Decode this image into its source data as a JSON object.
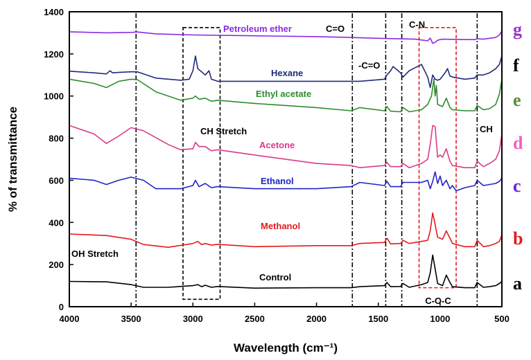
{
  "chart_data": {
    "type": "line",
    "xlabel": "Wavelength (cm⁻¹)",
    "ylabel": "% of transmittance",
    "xlim": [
      4000,
      500
    ],
    "ylim": [
      0,
      1400
    ],
    "x_ticks": [
      "4000",
      "3500",
      "3000",
      "2500",
      "2000",
      "1500",
      "1000",
      "500"
    ],
    "y_ticks": [
      "0",
      "200",
      "400",
      "600",
      "800",
      "1000",
      "1200",
      "1400"
    ],
    "grid": false,
    "series": [
      {
        "name": "Control",
        "letter": "a",
        "color": "#000000",
        "letter_color": "#000000",
        "x": [
          4000,
          3700,
          3500,
          3400,
          3200,
          3000,
          2960,
          2930,
          2900,
          2850,
          2800,
          2500,
          2000,
          1720,
          1650,
          1450,
          1430,
          1400,
          1320,
          1300,
          1250,
          1150,
          1100,
          1080,
          1060,
          1040,
          1020,
          980,
          950,
          920,
          900,
          800,
          720,
          700,
          650,
          600,
          550,
          520,
          500
        ],
        "y": [
          120,
          118,
          105,
          92,
          92,
          100,
          105,
          95,
          102,
          92,
          96,
          88,
          90,
          90,
          95,
          100,
          115,
          95,
          96,
          110,
          92,
          105,
          115,
          160,
          245,
          180,
          110,
          100,
          150,
          115,
          95,
          90,
          90,
          115,
          92,
          95,
          100,
          110,
          120
        ]
      },
      {
        "name": "Methanol",
        "letter": "b",
        "color": "#e41a1c",
        "letter_color": "#e41a1c",
        "x": [
          4000,
          3700,
          3500,
          3400,
          3200,
          3000,
          2960,
          2930,
          2900,
          2850,
          2800,
          2500,
          2000,
          1720,
          1650,
          1450,
          1430,
          1400,
          1320,
          1300,
          1250,
          1150,
          1100,
          1080,
          1060,
          1040,
          1020,
          980,
          950,
          920,
          900,
          800,
          720,
          700,
          650,
          600,
          550,
          520,
          500
        ],
        "y": [
          345,
          338,
          320,
          295,
          282,
          300,
          310,
          295,
          300,
          292,
          296,
          285,
          290,
          290,
          300,
          305,
          325,
          298,
          300,
          315,
          300,
          310,
          315,
          360,
          445,
          390,
          330,
          320,
          360,
          325,
          300,
          285,
          285,
          315,
          285,
          290,
          300,
          310,
          340
        ]
      },
      {
        "name": "Ethanol",
        "letter": "c",
        "color": "#1f24c8",
        "letter_color": "#6a1fd6",
        "x": [
          4000,
          3800,
          3700,
          3600,
          3500,
          3400,
          3300,
          3100,
          3000,
          2980,
          2950,
          2900,
          2850,
          2800,
          2500,
          2000,
          1720,
          1650,
          1450,
          1430,
          1400,
          1320,
          1300,
          1150,
          1100,
          1080,
          1060,
          1040,
          1020,
          1000,
          980,
          950,
          920,
          900,
          870,
          800,
          720,
          700,
          650,
          600,
          550,
          520,
          500
        ],
        "y": [
          610,
          600,
          580,
          600,
          615,
          600,
          560,
          560,
          575,
          600,
          570,
          585,
          565,
          570,
          560,
          560,
          570,
          590,
          575,
          595,
          570,
          570,
          590,
          590,
          600,
          560,
          595,
          640,
          585,
          620,
          575,
          600,
          560,
          575,
          550,
          565,
          575,
          600,
          575,
          580,
          585,
          595,
          610
        ]
      },
      {
        "name": "Acetone",
        "letter": "d",
        "color": "#d93a8a",
        "letter_color": "#f25fc2",
        "x": [
          4000,
          3800,
          3700,
          3600,
          3500,
          3400,
          3200,
          3100,
          3000,
          2980,
          2950,
          2900,
          2850,
          2800,
          2500,
          2000,
          1720,
          1650,
          1450,
          1430,
          1400,
          1320,
          1300,
          1250,
          1150,
          1100,
          1080,
          1060,
          1040,
          1020,
          1000,
          980,
          950,
          920,
          900,
          800,
          720,
          700,
          650,
          600,
          550,
          520,
          500
        ],
        "y": [
          860,
          820,
          775,
          810,
          850,
          835,
          770,
          745,
          750,
          780,
          760,
          760,
          740,
          745,
          720,
          680,
          670,
          660,
          670,
          685,
          665,
          665,
          680,
          660,
          680,
          700,
          770,
          860,
          855,
          710,
          720,
          710,
          750,
          690,
          670,
          660,
          660,
          690,
          665,
          680,
          700,
          740,
          820
        ]
      },
      {
        "name": "Ethyl acetate",
        "letter": "e",
        "color": "#2e8b2e",
        "letter_color": "#5a8a3a",
        "x": [
          4000,
          3800,
          3700,
          3600,
          3500,
          3450,
          3300,
          3100,
          3000,
          2980,
          2950,
          2900,
          2850,
          2800,
          2500,
          2000,
          1720,
          1650,
          1450,
          1430,
          1400,
          1320,
          1300,
          1250,
          1150,
          1100,
          1070,
          1050,
          1040,
          1030,
          1020,
          980,
          950,
          920,
          900,
          800,
          720,
          700,
          650,
          600,
          550,
          520,
          500
        ],
        "y": [
          1080,
          1060,
          1040,
          1070,
          1080,
          1078,
          1020,
          980,
          990,
          1000,
          985,
          990,
          975,
          980,
          965,
          945,
          930,
          945,
          930,
          950,
          928,
          925,
          945,
          925,
          935,
          960,
          1000,
          1080,
          1000,
          1050,
          960,
          950,
          990,
          945,
          935,
          930,
          930,
          955,
          935,
          940,
          960,
          1010,
          1080
        ]
      },
      {
        "name": "Hexane",
        "letter": "f",
        "color": "#1f2a78",
        "letter_color": "#000000",
        "x": [
          4000,
          3800,
          3700,
          3670,
          3650,
          3600,
          3500,
          3450,
          3300,
          3100,
          3030,
          3000,
          2980,
          2960,
          2930,
          2900,
          2870,
          2850,
          2800,
          2500,
          2000,
          1720,
          1650,
          1450,
          1430,
          1400,
          1380,
          1320,
          1300,
          1250,
          1150,
          1100,
          1080,
          1060,
          1040,
          1020,
          1000,
          960,
          940,
          920,
          900,
          800,
          720,
          700,
          650,
          600,
          550,
          520,
          500
        ],
        "y": [
          1118,
          1110,
          1105,
          1120,
          1110,
          1112,
          1115,
          1115,
          1085,
          1075,
          1080,
          1120,
          1190,
          1130,
          1115,
          1100,
          1120,
          1080,
          1070,
          1070,
          1070,
          1070,
          1070,
          1080,
          1100,
          1120,
          1140,
          1110,
          1090,
          1120,
          1150,
          1090,
          1040,
          1100,
          1080,
          1075,
          1080,
          1110,
          1130,
          1095,
          1090,
          1080,
          1085,
          1100,
          1100,
          1110,
          1130,
          1150,
          1190
        ]
      },
      {
        "name": "Petroleum ether",
        "letter": "g",
        "color": "#8a2be2",
        "letter_color": "#9932cc",
        "x": [
          4000,
          3700,
          3500,
          3450,
          3300,
          3000,
          2500,
          2000,
          1720,
          1500,
          1200,
          1100,
          1080,
          1060,
          1040,
          1020,
          1000,
          980,
          800,
          720,
          700,
          650,
          550,
          520,
          500
        ],
        "y": [
          1305,
          1300,
          1302,
          1304,
          1295,
          1290,
          1286,
          1282,
          1278,
          1274,
          1270,
          1262,
          1275,
          1250,
          1255,
          1265,
          1268,
          1270,
          1268,
          1268,
          1272,
          1270,
          1278,
          1290,
          1308
        ]
      }
    ],
    "annotations": [
      {
        "id": "oh-stretch",
        "text": "OH Stretch"
      },
      {
        "id": "ch-stretch",
        "text": "CH Stretch"
      },
      {
        "id": "c-eq-o",
        "text": "C=O"
      },
      {
        "id": "minus-c-eq-o",
        "text": "-C=O"
      },
      {
        "id": "c-n",
        "text": "C-N"
      },
      {
        "id": "ch",
        "text": "CH"
      },
      {
        "id": "c-o-c",
        "text": "C-O-C",
        "color": "#e41a1c"
      }
    ],
    "reference_lines_x": [
      3460,
      1710,
      1440,
      1310,
      700
    ],
    "boxes": [
      {
        "id": "ch-stretch-box",
        "x_range": [
          3080,
          2780
        ],
        "y_range": [
          35,
          1325
        ],
        "color": "#000000"
      },
      {
        "id": "c-o-c-box",
        "x_range": [
          1170,
          870
        ],
        "y_range": [
          90,
          1325
        ],
        "color": "#e41a1c"
      }
    ]
  }
}
